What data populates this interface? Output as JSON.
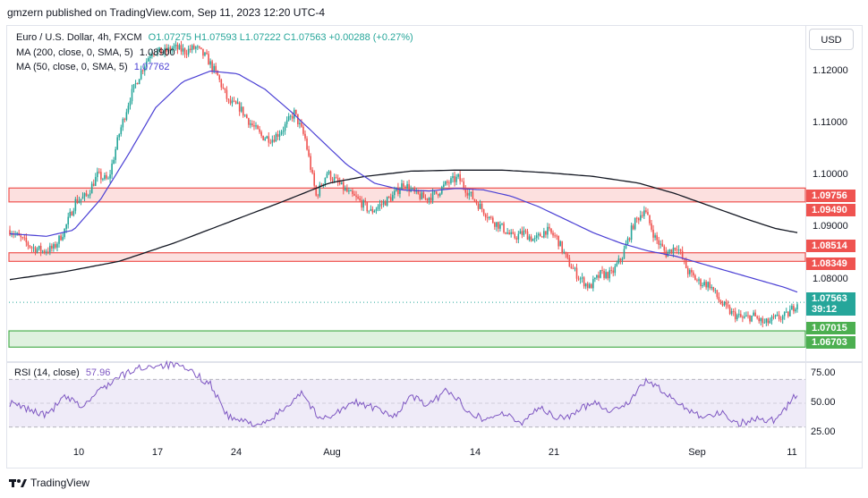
{
  "header": {
    "published": "gmzern published on TradingView.com, Sep 11, 2023 12:20 UTC-4"
  },
  "legend": {
    "symbol": "Euro / U.S. Dollar, 4h, FXCM",
    "ohlc": "O1.07275  H1.07593  L1.07222  C1.07563  +0.00288 (+0.27%)",
    "ma200_label": "MA (200, close, 0, SMA, 5)",
    "ma200_value": "1.08900",
    "ma50_label": "MA (50, close, 0, SMA, 5)",
    "ma50_value": "1.07762"
  },
  "currency_button": "USD",
  "colors": {
    "up": "#26a69a",
    "down": "#ef5350",
    "ma200": "#131722",
    "ma50": "#4a3fd4",
    "resistance": "#ef5350",
    "support": "#4caf50",
    "rsi": "#7e57c2"
  },
  "rsi_legend": {
    "label": "RSI (14, close)",
    "value": "57.96"
  },
  "footer": {
    "brand": "TradingView"
  },
  "chart_data": {
    "type": "candlestick",
    "title": "Euro / U.S. Dollar, 4h, FXCM",
    "x_ticks": [
      "10",
      "17",
      "24",
      "Aug",
      "14",
      "21",
      "Sep",
      "11"
    ],
    "y_ticks": [
      "1.12000",
      "1.11000",
      "1.10000",
      "1.09000",
      "1.08000"
    ],
    "ylim": [
      1.0645,
      1.1285
    ],
    "price_tags": [
      {
        "value": "1.09756",
        "kind": "resistance"
      },
      {
        "value": "1.09490",
        "kind": "resistance"
      },
      {
        "value": "1.08514",
        "kind": "resistance"
      },
      {
        "value": "1.08349",
        "kind": "resistance"
      },
      {
        "value": "1.07563",
        "kind": "current",
        "countdown": "39:12"
      },
      {
        "value": "1.07015",
        "kind": "support"
      },
      {
        "value": "1.06703",
        "kind": "support"
      }
    ],
    "zones": [
      {
        "from": 1.0949,
        "to": 1.09756,
        "kind": "resistance"
      },
      {
        "from": 1.08349,
        "to": 1.08514,
        "kind": "resistance"
      },
      {
        "from": 1.06703,
        "to": 1.07015,
        "kind": "support"
      }
    ],
    "close_path": [
      [
        0,
        1.0895
      ],
      [
        6,
        1.0878
      ],
      [
        12,
        1.0862
      ],
      [
        18,
        1.0855
      ],
      [
        24,
        1.086
      ],
      [
        30,
        1.0895
      ],
      [
        36,
        1.095
      ],
      [
        42,
        1.096
      ],
      [
        48,
        1.1
      ],
      [
        54,
        1.099
      ],
      [
        60,
        1.108
      ],
      [
        66,
        1.115
      ],
      [
        72,
        1.12
      ],
      [
        78,
        1.124
      ],
      [
        84,
        1.1235
      ],
      [
        90,
        1.1245
      ],
      [
        96,
        1.1238
      ],
      [
        102,
        1.1245
      ],
      [
        108,
        1.1225
      ],
      [
        114,
        1.119
      ],
      [
        120,
        1.114
      ],
      [
        126,
        1.113
      ],
      [
        132,
        1.11
      ],
      [
        138,
        1.1075
      ],
      [
        144,
        1.107
      ],
      [
        150,
        1.109
      ],
      [
        156,
        1.112
      ],
      [
        162,
        1.107
      ],
      [
        168,
        1.096
      ],
      [
        174,
        1.1005
      ],
      [
        180,
        1.0985
      ],
      [
        186,
        1.0965
      ],
      [
        192,
        1.095
      ],
      [
        198,
        1.093
      ],
      [
        204,
        1.0945
      ],
      [
        210,
        1.096
      ],
      [
        216,
        1.0985
      ],
      [
        222,
        1.0965
      ],
      [
        228,
        1.0955
      ],
      [
        234,
        1.0965
      ],
      [
        240,
        1.0985
      ],
      [
        246,
        1.0995
      ],
      [
        252,
        1.0965
      ],
      [
        258,
        1.094
      ],
      [
        264,
        1.0915
      ],
      [
        270,
        1.09
      ],
      [
        276,
        1.088
      ],
      [
        282,
        1.089
      ],
      [
        288,
        1.0875
      ],
      [
        294,
        1.0895
      ],
      [
        300,
        1.088
      ],
      [
        306,
        1.0835
      ],
      [
        312,
        1.0805
      ],
      [
        318,
        1.0785
      ],
      [
        324,
        1.081
      ],
      [
        330,
        1.081
      ],
      [
        336,
        1.0845
      ],
      [
        342,
        1.0905
      ],
      [
        348,
        1.0935
      ],
      [
        354,
        1.088
      ],
      [
        360,
        1.085
      ],
      [
        366,
        1.0865
      ],
      [
        372,
        1.0815
      ],
      [
        378,
        1.0795
      ],
      [
        384,
        1.079
      ],
      [
        390,
        1.0755
      ],
      [
        396,
        1.0735
      ],
      [
        402,
        1.0725
      ],
      [
        408,
        1.073
      ],
      [
        414,
        1.0715
      ],
      [
        420,
        1.0725
      ],
      [
        426,
        1.073
      ],
      [
        432,
        1.0756
      ]
    ],
    "ma50": [
      [
        0,
        1.0888
      ],
      [
        20,
        1.0883
      ],
      [
        35,
        1.0895
      ],
      [
        50,
        1.0955
      ],
      [
        65,
        1.104
      ],
      [
        80,
        1.113
      ],
      [
        95,
        1.118
      ],
      [
        110,
        1.12
      ],
      [
        125,
        1.1195
      ],
      [
        140,
        1.1165
      ],
      [
        155,
        1.112
      ],
      [
        170,
        1.107
      ],
      [
        185,
        1.102
      ],
      [
        200,
        1.0985
      ],
      [
        215,
        1.0972
      ],
      [
        230,
        1.097
      ],
      [
        245,
        1.0975
      ],
      [
        260,
        1.0972
      ],
      [
        275,
        1.096
      ],
      [
        290,
        1.094
      ],
      [
        305,
        1.0915
      ],
      [
        320,
        1.089
      ],
      [
        335,
        1.087
      ],
      [
        350,
        1.0855
      ],
      [
        365,
        1.0845
      ],
      [
        380,
        1.083
      ],
      [
        395,
        1.0815
      ],
      [
        410,
        1.08
      ],
      [
        425,
        1.0785
      ],
      [
        432,
        1.0776
      ]
    ],
    "ma200": [
      [
        0,
        1.08
      ],
      [
        30,
        1.0815
      ],
      [
        60,
        1.0835
      ],
      [
        90,
        1.087
      ],
      [
        120,
        1.091
      ],
      [
        150,
        1.095
      ],
      [
        175,
        1.0985
      ],
      [
        195,
        1.0998
      ],
      [
        220,
        1.1008
      ],
      [
        245,
        1.101
      ],
      [
        270,
        1.101
      ],
      [
        295,
        1.1005
      ],
      [
        320,
        1.0998
      ],
      [
        345,
        1.0985
      ],
      [
        365,
        1.0965
      ],
      [
        385,
        1.094
      ],
      [
        405,
        1.0915
      ],
      [
        420,
        1.0898
      ],
      [
        432,
        1.089
      ]
    ],
    "rsi": {
      "label": "RSI (14, close)",
      "current": 57.96,
      "ylim": [
        17,
        83
      ],
      "y_ticks": [
        "75.00",
        "50.00",
        "25.00"
      ],
      "bands": [
        30,
        70
      ],
      "path": [
        [
          0,
          50
        ],
        [
          10,
          45
        ],
        [
          20,
          40
        ],
        [
          30,
          55
        ],
        [
          40,
          47
        ],
        [
          50,
          62
        ],
        [
          60,
          72
        ],
        [
          70,
          79
        ],
        [
          80,
          82
        ],
        [
          90,
          82
        ],
        [
          100,
          76
        ],
        [
          110,
          66
        ],
        [
          120,
          38
        ],
        [
          130,
          34
        ],
        [
          140,
          32
        ],
        [
          150,
          45
        ],
        [
          160,
          60
        ],
        [
          170,
          36
        ],
        [
          180,
          43
        ],
        [
          190,
          51
        ],
        [
          200,
          46
        ],
        [
          210,
          38
        ],
        [
          220,
          56
        ],
        [
          230,
          48
        ],
        [
          240,
          62
        ],
        [
          250,
          46
        ],
        [
          260,
          36
        ],
        [
          270,
          42
        ],
        [
          280,
          33
        ],
        [
          290,
          47
        ],
        [
          300,
          37
        ],
        [
          310,
          41
        ],
        [
          320,
          52
        ],
        [
          330,
          43
        ],
        [
          340,
          52
        ],
        [
          350,
          70
        ],
        [
          360,
          57
        ],
        [
          370,
          47
        ],
        [
          380,
          39
        ],
        [
          390,
          42
        ],
        [
          400,
          33
        ],
        [
          410,
          37
        ],
        [
          420,
          36
        ],
        [
          432,
          58
        ]
      ]
    }
  }
}
